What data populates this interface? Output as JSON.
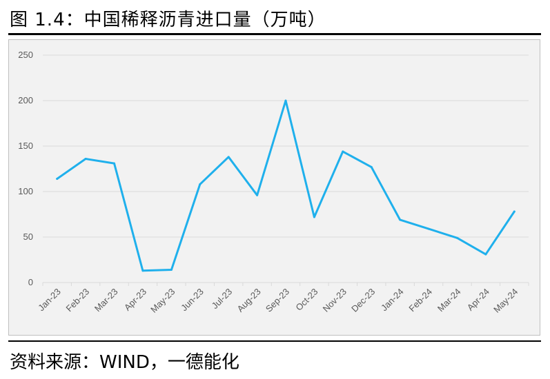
{
  "figure": {
    "title": "图 1.4：中国稀释沥青进口量（万吨）",
    "source": "资料来源：WIND，一德能化"
  },
  "chart_data": {
    "type": "line",
    "title": "",
    "xlabel": "",
    "ylabel": "",
    "categories": [
      "Jan-23",
      "Feb-23",
      "Mar-23",
      "Apr-23",
      "May-23",
      "Jun-23",
      "Jul-23",
      "Aug-23",
      "Sep-23",
      "Oct-23",
      "Nov-23",
      "Dec-23",
      "Jan-24",
      "Feb-24",
      "Mar-24",
      "Apr-24",
      "May-24"
    ],
    "series": [
      {
        "values": [
          114,
          136,
          131,
          13,
          14,
          108,
          138,
          96,
          200,
          72,
          144,
          127,
          69,
          59,
          49,
          31,
          78
        ]
      }
    ],
    "ylim": [
      0,
      250
    ],
    "yticks": [
      0,
      50,
      100,
      150,
      200,
      250
    ],
    "grid": true,
    "legend": "none",
    "colors": {
      "line": "#1fb0ec",
      "grid": "#d9d9d9",
      "plot_bg": "#f2f2f2"
    }
  }
}
